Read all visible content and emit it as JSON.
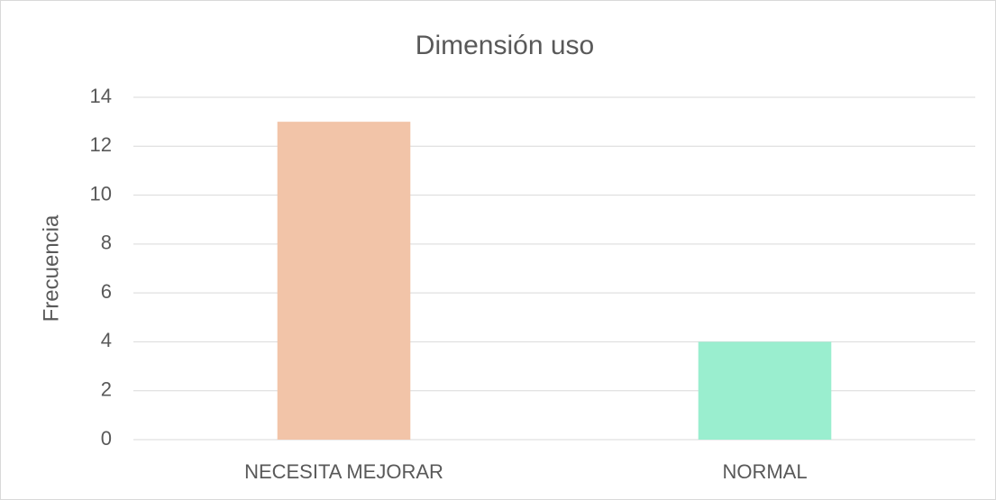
{
  "chart_data": {
    "type": "bar",
    "title": "Dimensión uso",
    "y_label": "Frecuencia",
    "categories": [
      "NECESITA MEJORAR",
      "NORMAL"
    ],
    "values": [
      13,
      4
    ],
    "colors": [
      "#f2c4a8",
      "#9aeecf"
    ],
    "ylim": [
      0,
      14
    ],
    "yticks": [
      0,
      2,
      4,
      6,
      8,
      10,
      12,
      14
    ],
    "grid": true
  }
}
